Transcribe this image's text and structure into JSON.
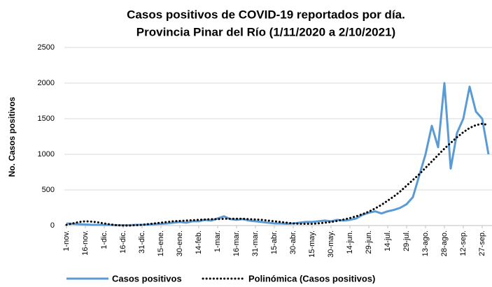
{
  "chart_data": {
    "type": "line",
    "title": [
      "Casos positivos de COVID-19 reportados por día.",
      "Provincia Pinar del Río (1/11/2020 a 2/10/2021)"
    ],
    "ylabel": "No. Casos positivos",
    "categories": [
      "1-nov.",
      null,
      null,
      "16-nov.",
      null,
      null,
      "1-dic.",
      null,
      null,
      "16-dic.",
      null,
      null,
      "31-dic.",
      null,
      null,
      "15-ene.",
      null,
      null,
      "30-ene.",
      null,
      null,
      "14-feb.",
      null,
      null,
      "1-mar.",
      null,
      null,
      "16-mar.",
      null,
      null,
      "31-mar.",
      null,
      null,
      "15-abr.",
      null,
      null,
      "30-abr.",
      null,
      null,
      "15-may.",
      null,
      null,
      "30-may.",
      null,
      null,
      "14-jun.",
      null,
      null,
      "29-jun.",
      null,
      null,
      "14-jul.",
      null,
      null,
      "29-jul.",
      null,
      null,
      "13-ago.",
      null,
      null,
      "28-ago.",
      null,
      null,
      "12-sep.",
      null,
      null,
      "27-sep.",
      null
    ],
    "series": [
      {
        "name": "Casos positivos",
        "color": "#5b9bd5",
        "style": "solid",
        "values": [
          30,
          25,
          20,
          15,
          10,
          10,
          10,
          8,
          5,
          5,
          5,
          10,
          10,
          15,
          20,
          25,
          30,
          40,
          50,
          40,
          60,
          60,
          80,
          70,
          100,
          130,
          90,
          80,
          90,
          70,
          60,
          50,
          40,
          30,
          30,
          25,
          30,
          40,
          50,
          50,
          60,
          70,
          60,
          80,
          70,
          80,
          100,
          150,
          180,
          200,
          170,
          200,
          220,
          250,
          300,
          400,
          700,
          1000,
          1400,
          1100,
          2000,
          800,
          1300,
          1500,
          1950,
          1600,
          1500,
          1000
        ]
      },
      {
        "name": "Polinómica (Casos positivos)",
        "color": "#000000",
        "style": "dotted",
        "values": [
          10,
          30,
          50,
          60,
          55,
          45,
          30,
          15,
          5,
          0,
          0,
          5,
          10,
          20,
          30,
          40,
          50,
          60,
          65,
          70,
          75,
          80,
          85,
          90,
          90,
          95,
          95,
          95,
          95,
          90,
          85,
          80,
          70,
          60,
          50,
          40,
          30,
          25,
          25,
          25,
          30,
          40,
          50,
          65,
          85,
          105,
          130,
          160,
          195,
          240,
          290,
          350,
          410,
          480,
          560,
          640,
          720,
          810,
          900,
          990,
          1080,
          1160,
          1240,
          1310,
          1370,
          1410,
          1430,
          1410
        ]
      }
    ],
    "ylim": [
      0,
      2500
    ],
    "yticks": [
      0,
      500,
      1000,
      1500,
      2000,
      2500
    ],
    "grid": true,
    "legend": "bottom"
  }
}
